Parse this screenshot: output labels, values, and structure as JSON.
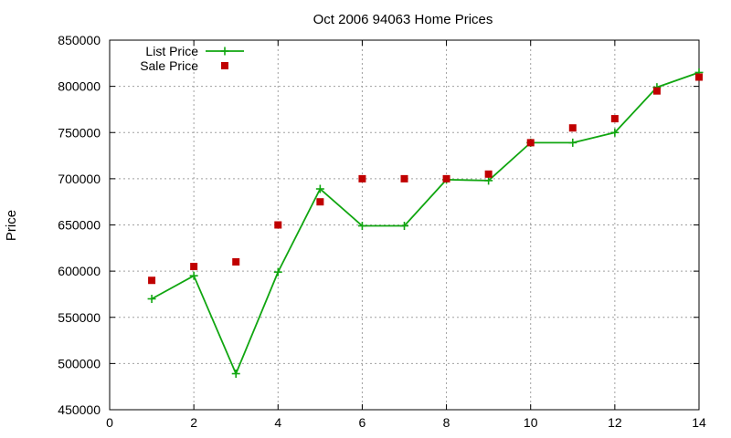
{
  "chart_data": {
    "type": "line",
    "title": "Oct 2006 94063 Home Prices",
    "xlabel": "",
    "ylabel": "Price",
    "xlim": [
      0,
      14
    ],
    "ylim": [
      450000,
      850000
    ],
    "x_ticks": [
      0,
      2,
      4,
      6,
      8,
      10,
      12,
      14
    ],
    "y_ticks": [
      450000,
      500000,
      550000,
      600000,
      650000,
      700000,
      750000,
      800000,
      850000
    ],
    "grid": true,
    "legend_position": "top-left",
    "series": [
      {
        "name": "List Price",
        "style": "linespoints",
        "marker": "plus",
        "color": "#11a611",
        "x": [
          1,
          2,
          3,
          4,
          5,
          6,
          7,
          8,
          9,
          10,
          11,
          12,
          13,
          14
        ],
        "values": [
          570000,
          595000,
          489000,
          599000,
          689000,
          649000,
          649000,
          699000,
          698000,
          739000,
          739000,
          750000,
          799000,
          815000
        ]
      },
      {
        "name": "Sale Price",
        "style": "points",
        "marker": "square",
        "color": "#c00000",
        "x": [
          1,
          2,
          3,
          4,
          5,
          6,
          7,
          8,
          9,
          10,
          11,
          12,
          13,
          14
        ],
        "values": [
          590000,
          605000,
          610000,
          650000,
          675000,
          700000,
          700000,
          700000,
          705000,
          739000,
          755000,
          765000,
          795000,
          810000
        ]
      }
    ]
  }
}
